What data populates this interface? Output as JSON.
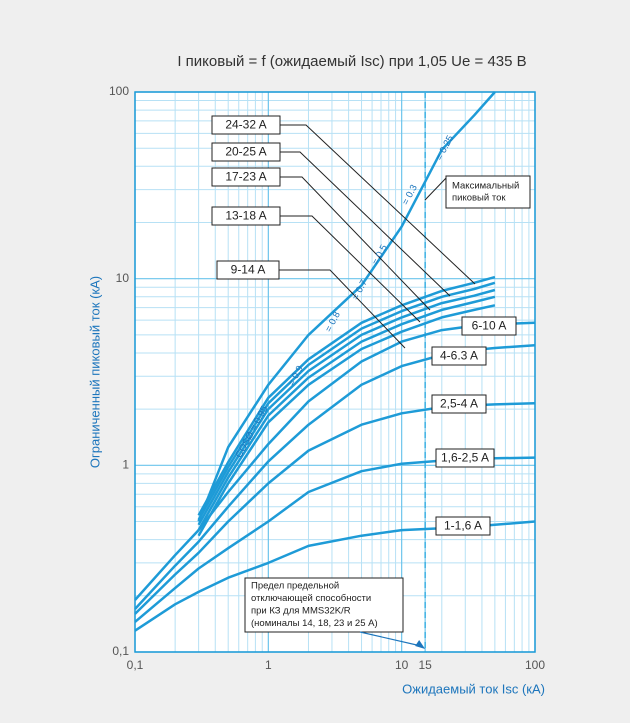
{
  "chart_data": {
    "type": "line",
    "title": "I пиковый = f (ожидаемый Isc) при 1,05 Ue = 435 В",
    "x_label": "Ожидаемый ток Isc (кА)",
    "y_label": "Ограниченный пиковый ток (кА)",
    "log_x": true,
    "log_y": true,
    "grid": true,
    "xlim": [
      0.1,
      100
    ],
    "ylim": [
      0.1,
      100
    ],
    "xticks": [
      {
        "value": 0.1,
        "label": "0,1"
      },
      1,
      10,
      15,
      100
    ],
    "yticks": [
      {
        "value": 0.1,
        "label": "0,1"
      },
      1,
      10,
      100
    ],
    "x_minor_grid": [
      0.2,
      0.3,
      0.4,
      0.5,
      0.6,
      0.7,
      0.8,
      0.9,
      2,
      3,
      4,
      5,
      6,
      7,
      8,
      9,
      20,
      30,
      40,
      50,
      60,
      70,
      80,
      90
    ],
    "y_minor_grid": [
      0.2,
      0.3,
      0.4,
      0.5,
      0.6,
      0.7,
      0.8,
      0.9,
      2,
      3,
      4,
      5,
      6,
      7,
      8,
      9,
      20,
      30,
      40,
      50,
      60,
      70,
      80,
      90
    ],
    "x": [
      0.1,
      0.2,
      0.3,
      0.5,
      1,
      2,
      5,
      10,
      20,
      35,
      50,
      100
    ],
    "series": [
      {
        "name": "1-1,6 A",
        "color": "#1e9bd7",
        "values": [
          0.13,
          0.18,
          0.21,
          0.25,
          0.3,
          0.37,
          0.42,
          0.45,
          0.46,
          0.47,
          0.48,
          0.5
        ]
      },
      {
        "name": "1,6-2,5 A",
        "color": "#1e9bd7",
        "values": [
          0.145,
          0.22,
          0.28,
          0.36,
          0.5,
          0.72,
          0.93,
          1.02,
          1.06,
          1.08,
          1.09,
          1.1
        ]
      },
      {
        "name": "2,5-4 A",
        "color": "#1e9bd7",
        "values": [
          0.16,
          0.26,
          0.34,
          0.5,
          0.8,
          1.2,
          1.65,
          1.9,
          2.05,
          2.1,
          2.12,
          2.15
        ]
      },
      {
        "name": "4-6.3 A",
        "color": "#1e9bd7",
        "values": [
          0.17,
          0.29,
          0.39,
          0.6,
          1.05,
          1.65,
          2.7,
          3.4,
          3.9,
          4.15,
          4.25,
          4.4
        ]
      },
      {
        "name": "6-10 A",
        "color": "#1e9bd7",
        "values": [
          0.19,
          0.33,
          0.45,
          0.72,
          1.3,
          2.2,
          3.6,
          4.6,
          5.3,
          5.6,
          5.7,
          5.8
        ]
      },
      {
        "name": "9-14 A",
        "color": "#1e9bd7",
        "values": [
          null,
          null,
          0.42,
          0.8,
          1.7,
          2.7,
          4.2,
          5.2,
          6.2,
          6.8,
          7.2,
          null
        ]
      },
      {
        "name": "13-18 A",
        "color": "#1e9bd7",
        "values": [
          null,
          null,
          0.45,
          0.86,
          1.85,
          2.95,
          4.6,
          5.7,
          6.8,
          7.5,
          8.0,
          null
        ]
      },
      {
        "name": "17-23 A",
        "color": "#1e9bd7",
        "values": [
          null,
          null,
          0.48,
          0.92,
          2.0,
          3.2,
          5.0,
          6.2,
          7.4,
          8.1,
          8.7,
          null
        ]
      },
      {
        "name": "20-25 A",
        "color": "#1e9bd7",
        "values": [
          null,
          null,
          0.51,
          0.98,
          2.15,
          3.45,
          5.4,
          6.7,
          8.0,
          8.8,
          9.5,
          null
        ]
      },
      {
        "name": "24-32 A",
        "color": "#1e9bd7",
        "values": [
          null,
          null,
          0.54,
          1.04,
          2.3,
          3.7,
          5.8,
          7.2,
          8.6,
          9.5,
          10.2,
          null
        ]
      },
      {
        "name": "Максимальный пиковый ток",
        "color": "#1e9bd7",
        "values": [
          null,
          null,
          0.5,
          1.25,
          2.7,
          5.0,
          9.2,
          19,
          49,
          75,
          100,
          null
        ]
      }
    ],
    "cos_labels": [
      "COSØ = 0.95",
      "= 0.9",
      "= 0.8",
      "= 0.7",
      "= 0.5",
      "= 0.3",
      "= 0.25"
    ],
    "limit_line": {
      "x": 15,
      "label": [
        "Предел предельной",
        "отключающей способности",
        "при КЗ для MMS32K/R",
        "(номиналы 14, 18, 23 и 25 A)"
      ]
    },
    "peak_label": [
      "Максимальный",
      "пиковый ток"
    ]
  }
}
